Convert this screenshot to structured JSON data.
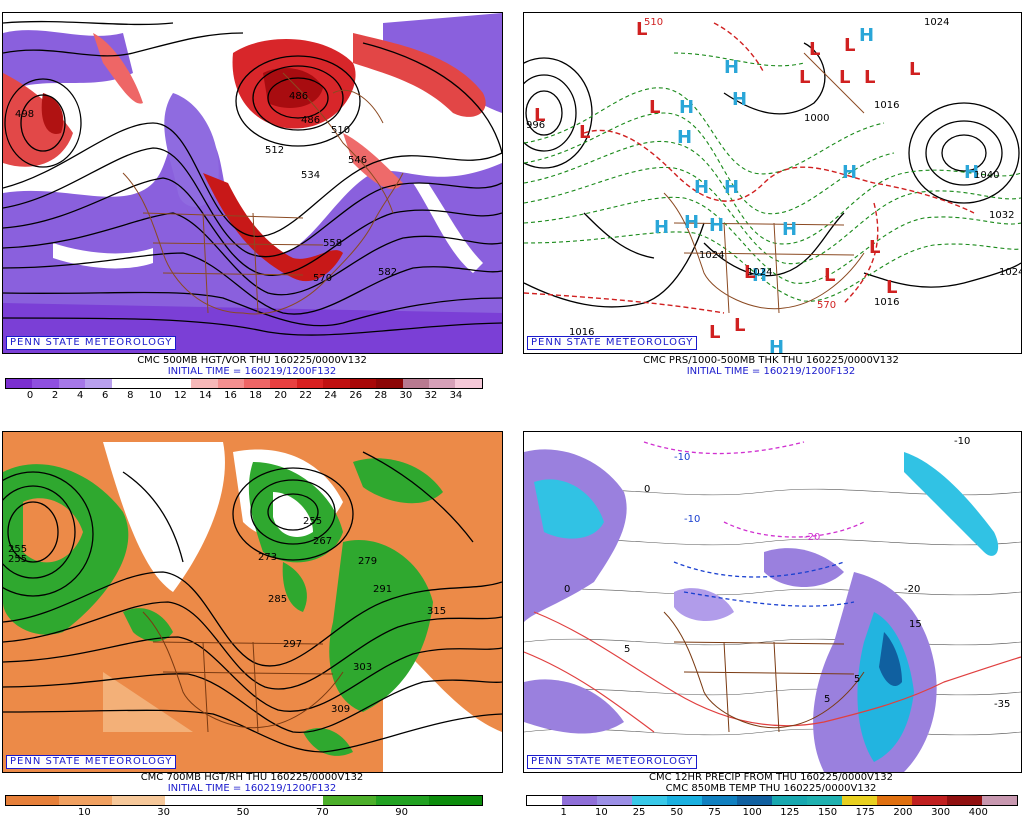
{
  "credit": "PENN STATE METEOROLOGY",
  "panels": {
    "p1": {
      "caption": "CMC 500MB HGT/VOR THU 160225/0000V132",
      "init": "INITIAL TIME = 160219/1200F132",
      "contour_labels": [
        "486",
        "510",
        "486",
        "534",
        "512",
        "546",
        "558",
        "570",
        "582",
        "498"
      ],
      "scale": [
        "0",
        "2",
        "4",
        "6",
        "8",
        "10",
        "12",
        "14",
        "16",
        "18",
        "20",
        "22",
        "24",
        "26",
        "28",
        "30",
        "32",
        "34"
      ],
      "scale_colors": [
        "#7b2fd0",
        "#8f50e0",
        "#a678e8",
        "#b9a0ee",
        "#ffffff",
        "#ffffff",
        "#ffffff",
        "#f7b8b8",
        "#f49090",
        "#ee6666",
        "#e84040",
        "#d82020",
        "#c01010",
        "#a80808",
        "#8c0606",
        "#b87a90",
        "#d6a0b8",
        "#f5c8d8"
      ]
    },
    "p2": {
      "caption": "CMC PRS/1000-500MB THK THU 160225/0000V132",
      "init": "INITIAL TIME = 160219/1200F132",
      "contour_labels": [
        "510",
        "996",
        "1016",
        "1000",
        "1040",
        "1032",
        "1024",
        "1024",
        "1016",
        "1016",
        "570",
        "1024",
        "1024"
      ],
      "highs": [
        "H",
        "H",
        "H",
        "H",
        "H",
        "H",
        "H",
        "H",
        "H",
        "H",
        "H",
        "H",
        "H",
        "H",
        "H"
      ],
      "lows": [
        "L",
        "L",
        "L",
        "L",
        "L",
        "L",
        "L",
        "L",
        "L",
        "L",
        "L",
        "L",
        "L",
        "L",
        "L",
        "L"
      ]
    },
    "p3": {
      "caption": "CMC 700MB HGT/RH THU 160225/0000V132",
      "init": "INITIAL TIME = 160219/1200F132",
      "contour_labels": [
        "255",
        "255",
        "267",
        "273",
        "279",
        "285",
        "291",
        "297",
        "303",
        "309",
        "315",
        "255"
      ],
      "scale": [
        "10",
        "30",
        "50",
        "70",
        "90"
      ],
      "scale_colors": [
        "#e6803a",
        "#f0a060",
        "#f6c89a",
        "#ffffff",
        "#ffffff",
        "#ffffff",
        "#4caf2a",
        "#21a121",
        "#0c8c0c"
      ]
    },
    "p4": {
      "caption": "CMC 12HR PRECIP FROM THU 160225/0000V132",
      "caption2": "CMC 850MB TEMP THU 160225/0000V132",
      "contour_labels": [
        "-10",
        "-10",
        "-10",
        "0",
        "0",
        "-20",
        "-20",
        "5",
        "15",
        "5",
        "5",
        "-35"
      ],
      "scale": [
        "1",
        "10",
        "25",
        "50",
        "75",
        "100",
        "125",
        "150",
        "175",
        "200",
        "300",
        "400"
      ],
      "scale_colors": [
        "#ffffff",
        "#8f6fd8",
        "#9b8fe6",
        "#38c8e8",
        "#1ab0e0",
        "#1080c0",
        "#1060a0",
        "#18a8b0",
        "#1fb1b0",
        "#e8d020",
        "#e07010",
        "#c02020",
        "#901010",
        "#c898b0"
      ]
    }
  }
}
